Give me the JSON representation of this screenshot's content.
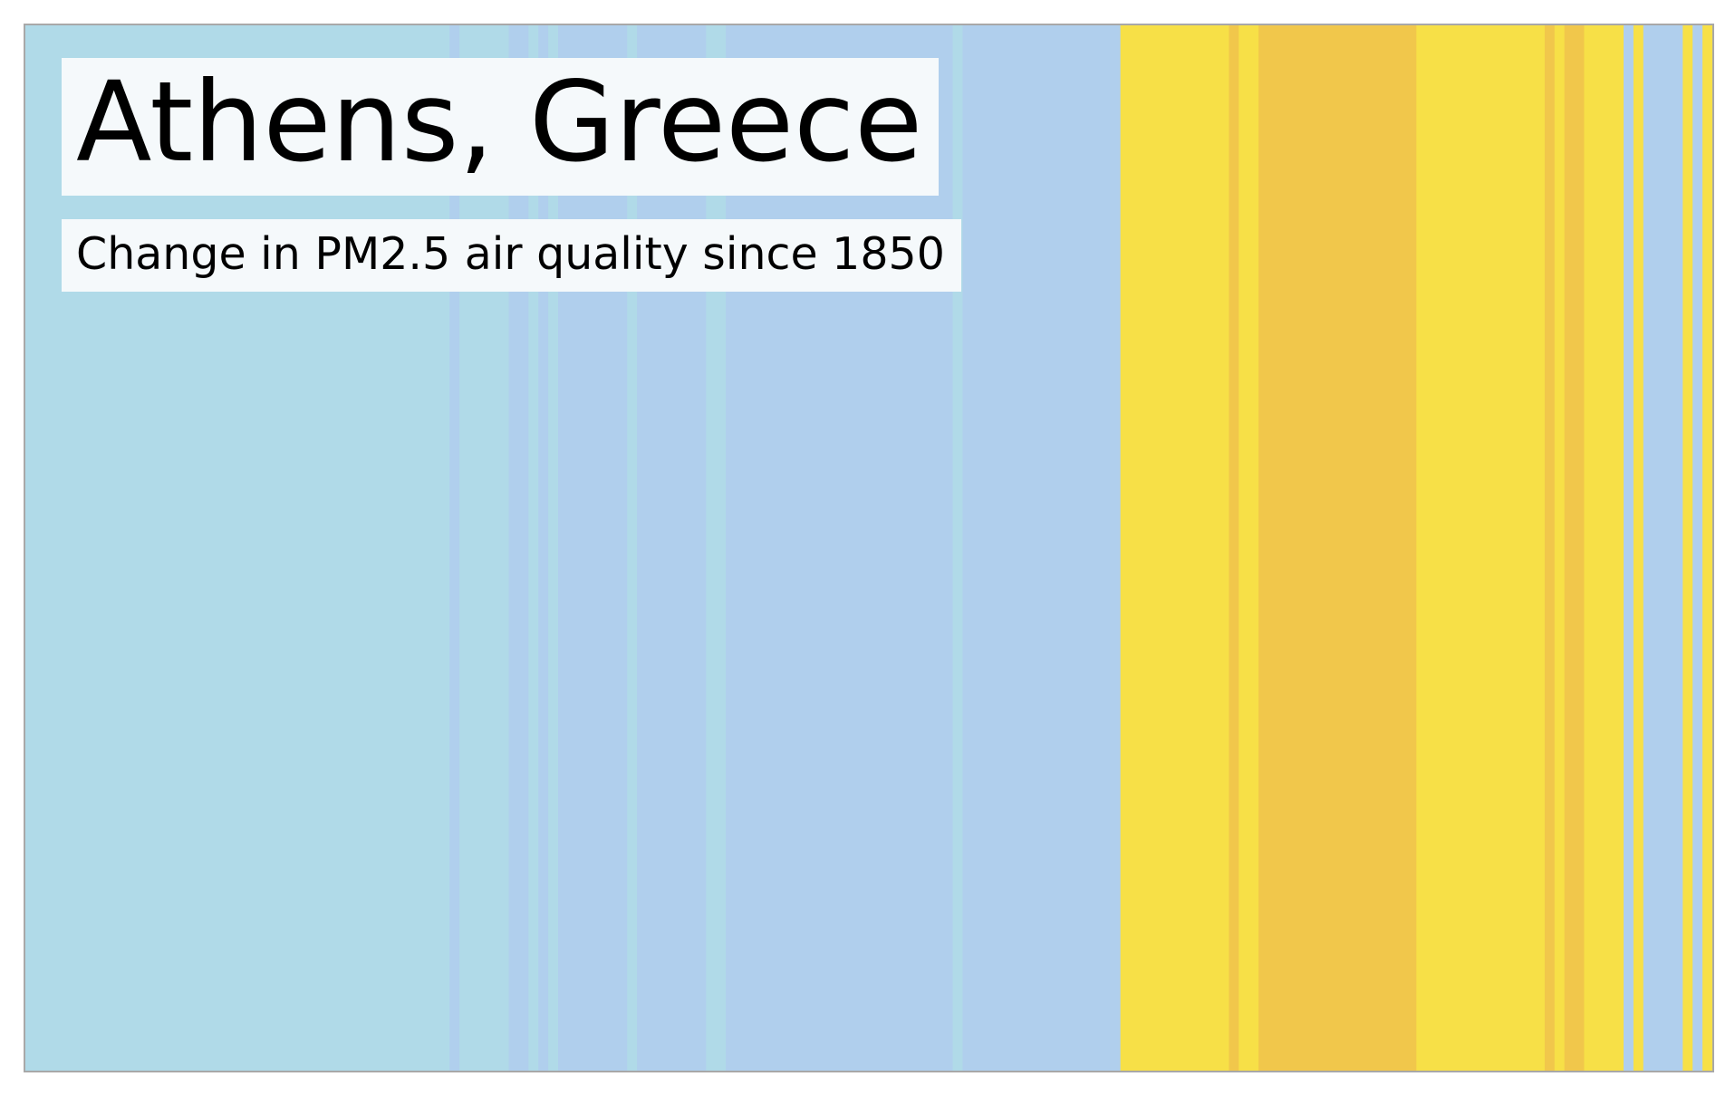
{
  "chart_data": {
    "type": "heatmap",
    "title": "Athens, Greece",
    "subtitle": "Change in PM2.5 air quality since 1850",
    "x_start": 1850,
    "x_end": 2021,
    "palette": {
      "1": "#b0dae8",
      "2": "#b0cfed",
      "3": "#f7e047",
      "4": "#f1c74b"
    },
    "stripes": [
      {
        "from": 1850,
        "to": 1893,
        "level": 1
      },
      {
        "from": 1893,
        "to": 1894,
        "level": 2
      },
      {
        "from": 1894,
        "to": 1899,
        "level": 1
      },
      {
        "from": 1899,
        "to": 1901,
        "level": 2
      },
      {
        "from": 1901,
        "to": 1902,
        "level": 1
      },
      {
        "from": 1902,
        "to": 1903,
        "level": 2
      },
      {
        "from": 1903,
        "to": 1904,
        "level": 1
      },
      {
        "from": 1904,
        "to": 1911,
        "level": 2
      },
      {
        "from": 1911,
        "to": 1912,
        "level": 1
      },
      {
        "from": 1912,
        "to": 1919,
        "level": 2
      },
      {
        "from": 1919,
        "to": 1921,
        "level": 1
      },
      {
        "from": 1921,
        "to": 1944,
        "level": 2
      },
      {
        "from": 1944,
        "to": 1945,
        "level": 1
      },
      {
        "from": 1945,
        "to": 1961,
        "level": 2
      },
      {
        "from": 1961,
        "to": 1972,
        "level": 3
      },
      {
        "from": 1972,
        "to": 1973,
        "level": 4
      },
      {
        "from": 1973,
        "to": 1975,
        "level": 3
      },
      {
        "from": 1975,
        "to": 1991,
        "level": 4
      },
      {
        "from": 1991,
        "to": 2004,
        "level": 3
      },
      {
        "from": 2004,
        "to": 2005,
        "level": 4
      },
      {
        "from": 2005,
        "to": 2006,
        "level": 3
      },
      {
        "from": 2006,
        "to": 2008,
        "level": 4
      },
      {
        "from": 2008,
        "to": 2012,
        "level": 3
      },
      {
        "from": 2012,
        "to": 2013,
        "level": 2
      },
      {
        "from": 2013,
        "to": 2014,
        "level": 3
      },
      {
        "from": 2014,
        "to": 2018,
        "level": 2
      },
      {
        "from": 2018,
        "to": 2019,
        "level": 3
      },
      {
        "from": 2019,
        "to": 2020,
        "level": 2
      },
      {
        "from": 2020,
        "to": 2021,
        "level": 3
      }
    ]
  }
}
